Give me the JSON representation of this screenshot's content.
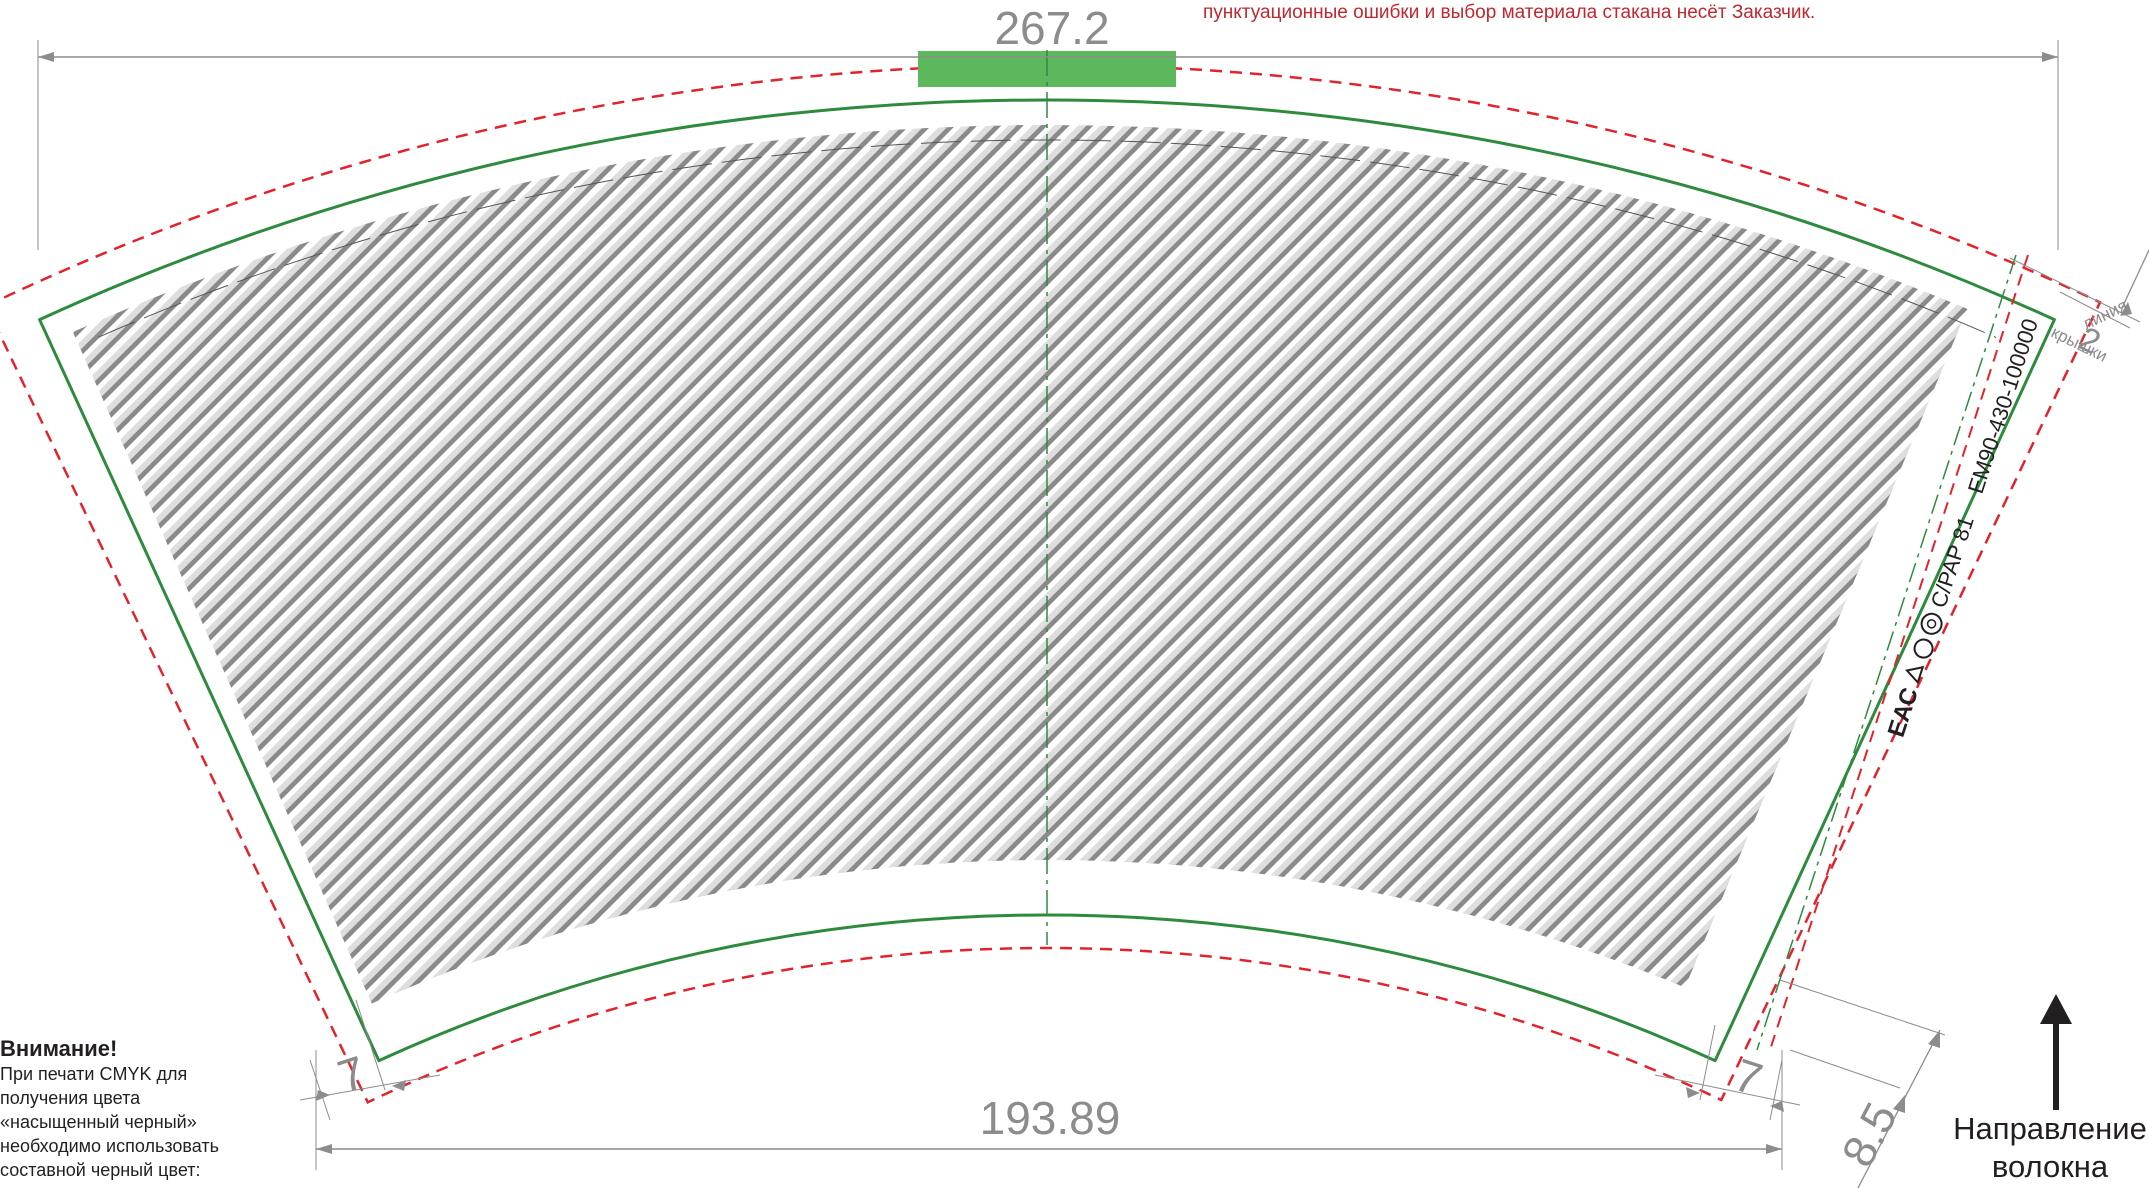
{
  "notice": {
    "responsibility_text": "пунктуационные ошибки и выбор материала стакана несёт Заказчик."
  },
  "dimensions": {
    "top_width": "267.2",
    "bottom_width": "193.89",
    "lid_offset": "2",
    "left_margin": "7",
    "right_margin": "7",
    "seam_width": "8.5"
  },
  "labels": {
    "lid_line_1": "линия",
    "lid_line_2": "крышки",
    "fiber_direction_1": "Направление",
    "fiber_direction_2": "волокна"
  },
  "seam_marking": {
    "eac_mark": "ЕАС",
    "material_code": "C/PAP 81",
    "product_code": "EM90-430-100000"
  },
  "warning": {
    "title": "Внимание!",
    "lines": [
      "При печати CMYK для",
      "получения цвета",
      "«насыщенный черный»",
      "необходимо использовать",
      "составной черный цвет:"
    ]
  },
  "colors": {
    "cut_line": "#2e8b3e",
    "bleed_line": "#e3232b",
    "glue_zone": "#5cb85c",
    "dimension_line": "#8c8c8c",
    "pattern_light": "#dedede",
    "pattern_dark": "#8a8a8a",
    "text_red": "#c1272d"
  },
  "pattern": {
    "type": "diamond-lattice"
  }
}
